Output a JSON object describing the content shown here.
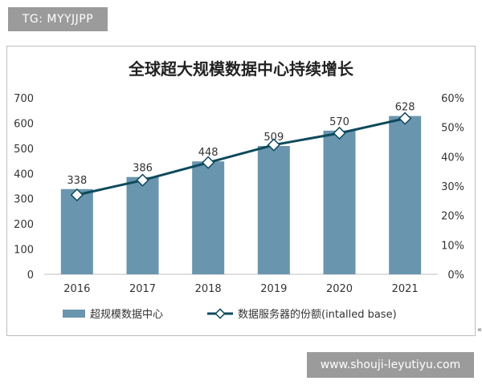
{
  "watermarks": {
    "top": "TG: MYYJJPP",
    "bottom": "www.shouji-leyutiyu.com"
  },
  "edge_mark": "«",
  "colors": {
    "bar": "#6a95ae",
    "line": "#0e4a5c",
    "marker_fill": "#ffffff"
  },
  "chart_data": {
    "type": "bar",
    "title": "全球超大规模数据中心持续增长",
    "categories": [
      "2016",
      "2017",
      "2018",
      "2019",
      "2020",
      "2021"
    ],
    "series": [
      {
        "name": "超规模数据中心",
        "type": "bar",
        "axis": "left",
        "values": [
          338,
          386,
          448,
          509,
          570,
          628
        ],
        "labels": [
          "338",
          "386",
          "448",
          "509",
          "570",
          "628"
        ]
      },
      {
        "name": "数据服务器的份额(intalled base)",
        "type": "line",
        "axis": "right",
        "values": [
          27,
          32,
          38,
          44,
          48,
          53
        ]
      }
    ],
    "ylim": [
      0,
      700
    ],
    "yticks": [
      "0",
      "100",
      "200",
      "300",
      "400",
      "500",
      "600",
      "700"
    ],
    "y2lim": [
      0,
      60
    ],
    "y2ticks": [
      "0%",
      "10%",
      "20%",
      "30%",
      "40%",
      "50%",
      "60%"
    ],
    "grid": false,
    "legend_position": "bottom"
  }
}
